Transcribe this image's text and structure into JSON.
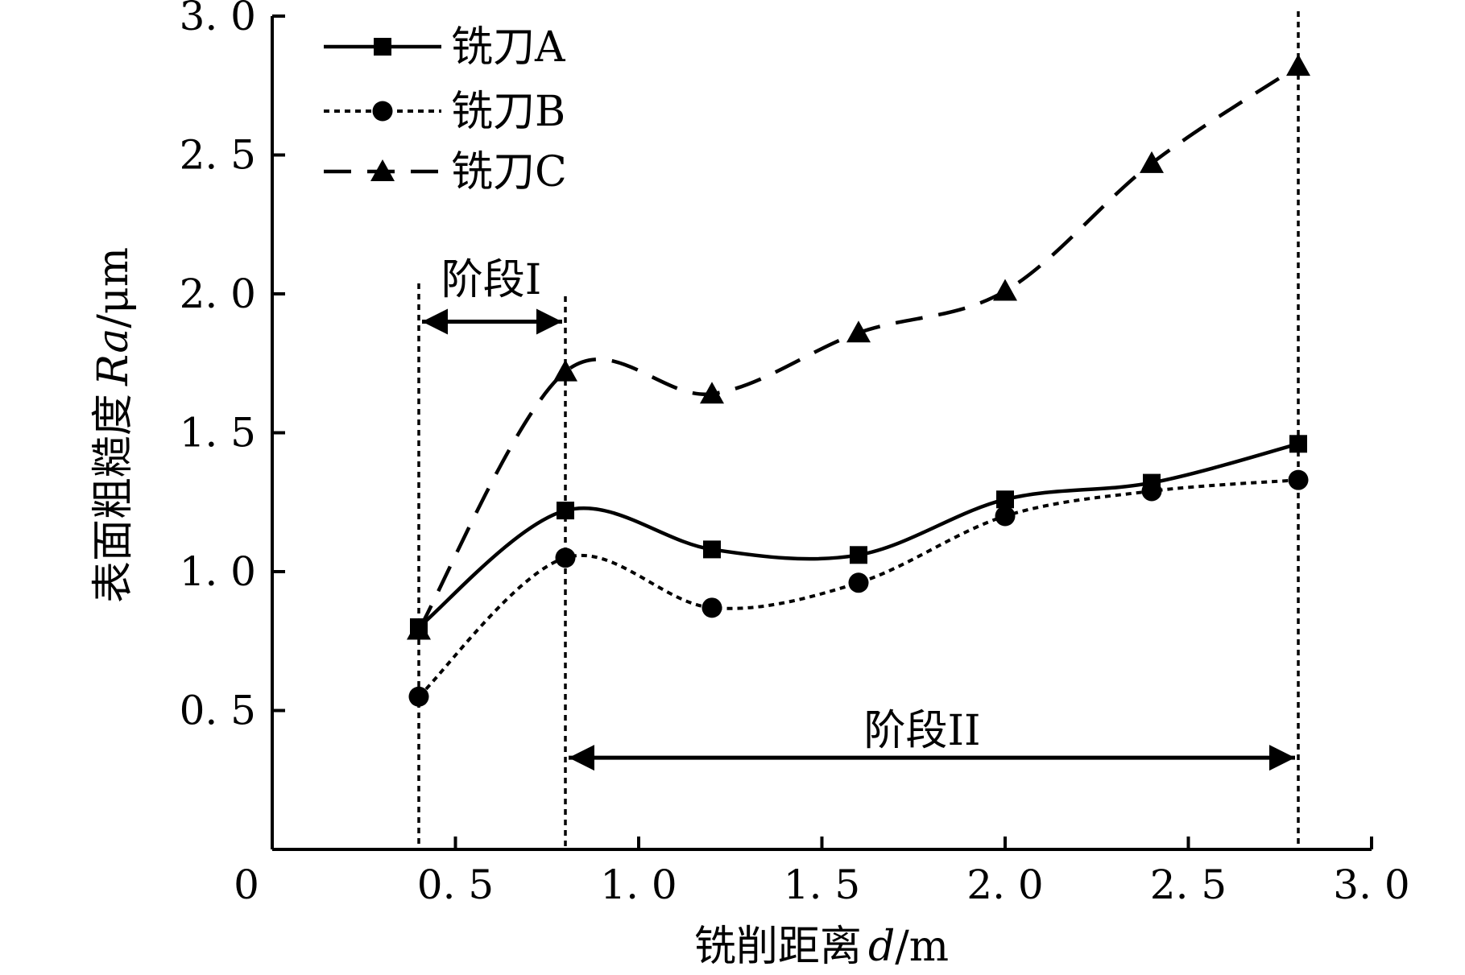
{
  "chart_data": {
    "type": "line",
    "xlabel": "铣削距离",
    "xlabel_var": "d",
    "xlabel_unit": "/m",
    "ylabel": "表面粗糙度",
    "ylabel_var": "Ra",
    "ylabel_unit": "/μm",
    "xlim": [
      0,
      3.0
    ],
    "ylim": [
      0,
      3.0
    ],
    "x_origin_label": "0",
    "xticks": [
      0.5,
      1.0,
      1.5,
      2.0,
      2.5,
      3.0
    ],
    "xtick_labels": [
      "0. 5",
      "1. 0",
      "1. 5",
      "2. 0",
      "2. 5",
      "3. 0"
    ],
    "yticks": [
      0.5,
      1.0,
      1.5,
      2.0,
      2.5,
      3.0
    ],
    "ytick_labels": [
      "0. 5",
      "1. 0",
      "1. 5",
      "2. 0",
      "2. 5",
      "3. 0"
    ],
    "grid": false,
    "legend_position": "top-left",
    "series": [
      {
        "name": "铣刀A",
        "marker": "square",
        "line": "solid",
        "x": [
          0.4,
          0.8,
          1.2,
          1.6,
          2.0,
          2.4,
          2.8
        ],
        "y": [
          0.8,
          1.22,
          1.08,
          1.06,
          1.26,
          1.32,
          1.46
        ]
      },
      {
        "name": "铣刀B",
        "marker": "circle",
        "line": "dotted",
        "x": [
          0.4,
          0.8,
          1.2,
          1.6,
          2.0,
          2.4,
          2.8
        ],
        "y": [
          0.55,
          1.05,
          0.87,
          0.96,
          1.2,
          1.29,
          1.33
        ]
      },
      {
        "name": "铣刀C",
        "marker": "triangle",
        "line": "dashed",
        "x": [
          0.4,
          0.8,
          1.2,
          1.6,
          2.0,
          2.4,
          2.8
        ],
        "y": [
          0.79,
          1.72,
          1.64,
          1.86,
          2.01,
          2.47,
          2.82
        ]
      }
    ],
    "annotations": {
      "stage1": {
        "label": "阶段I",
        "from": 0.4,
        "to": 0.8
      },
      "stage2": {
        "label": "阶段II",
        "from": 0.8,
        "to": 2.8
      }
    }
  }
}
